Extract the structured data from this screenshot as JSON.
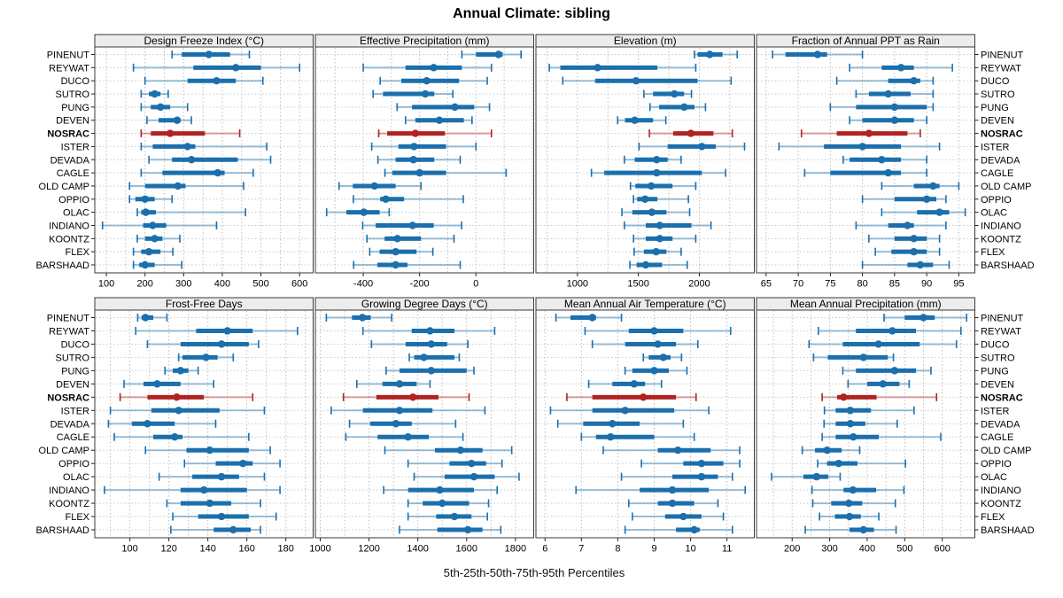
{
  "title": "Annual Climate: sibling",
  "caption": "5th-25th-50th-75th-95th Percentiles",
  "sites": [
    "PINENUT",
    "REYWAT",
    "DUCO",
    "SUTRO",
    "PUNG",
    "DEVEN",
    "NOSRAC",
    "ISTER",
    "DEVADA",
    "CAGLE",
    "OLD CAMP",
    "OPPIO",
    "OLAC",
    "INDIANO",
    "KOONTZ",
    "FLEX",
    "BARSHAAD"
  ],
  "highlight_site": "NOSRAC",
  "colors": {
    "series_blue": "#1b6fad",
    "highlight_red": "#b22222",
    "strip_bg": "#ececec",
    "panel_border": "#3a3a3a",
    "grid": "#bdbdbd",
    "row_line": "#c9c9c9",
    "text": "#000000"
  },
  "chart_data": {
    "type": "scatter",
    "subtype": "trellis percentile dot plot (whisker p5-p95, bar p25-p75, dot p50)",
    "layout": {
      "rows": 2,
      "cols": 4,
      "grid": "dotted",
      "legend": "none"
    },
    "percentile_order": [
      "p5",
      "p25",
      "p50",
      "p75",
      "p95"
    ],
    "panels": [
      {
        "label": "Design Freeze Index (°C)",
        "row": 0,
        "col": 0,
        "xlim": [
          70,
          635
        ],
        "ticks": [
          100,
          200,
          300,
          400,
          500,
          600
        ],
        "grid_step": 50,
        "values": [
          [
            270,
            295,
            365,
            420,
            470
          ],
          [
            170,
            325,
            435,
            500,
            600
          ],
          [
            200,
            310,
            385,
            435,
            505
          ],
          [
            190,
            210,
            225,
            240,
            260
          ],
          [
            190,
            215,
            240,
            265,
            310
          ],
          [
            205,
            235,
            283,
            292,
            320
          ],
          [
            190,
            215,
            265,
            355,
            445
          ],
          [
            190,
            220,
            310,
            330,
            515
          ],
          [
            210,
            270,
            320,
            440,
            525
          ],
          [
            190,
            245,
            388,
            406,
            480
          ],
          [
            160,
            200,
            285,
            305,
            455
          ],
          [
            160,
            175,
            200,
            225,
            270
          ],
          [
            180,
            190,
            202,
            228,
            460
          ],
          [
            90,
            195,
            220,
            255,
            385
          ],
          [
            180,
            200,
            225,
            245,
            290
          ],
          [
            170,
            190,
            210,
            240,
            272
          ],
          [
            170,
            185,
            200,
            225,
            295
          ]
        ]
      },
      {
        "label": "Effective Precipitation (mm)",
        "row": 0,
        "col": 1,
        "xlim": [
          -570,
          205
        ],
        "ticks": [
          -400,
          -200,
          0
        ],
        "grid_step": 100,
        "values": [
          [
            -50,
            0,
            80,
            95,
            160
          ],
          [
            -400,
            -250,
            -150,
            -50,
            55
          ],
          [
            -340,
            -265,
            -175,
            -60,
            40
          ],
          [
            -365,
            -330,
            -180,
            -148,
            -82
          ],
          [
            -280,
            -227,
            -75,
            -6,
            48
          ],
          [
            -250,
            -215,
            -130,
            -43,
            -14
          ],
          [
            -345,
            -315,
            -215,
            -110,
            55
          ],
          [
            -370,
            -275,
            -220,
            -106,
            0
          ],
          [
            -348,
            -285,
            -222,
            -148,
            -56
          ],
          [
            -323,
            -297,
            -200,
            -106,
            107
          ],
          [
            -486,
            -437,
            -360,
            -285,
            -195
          ],
          [
            -435,
            -340,
            -320,
            -255,
            -45
          ],
          [
            -530,
            -460,
            -398,
            -342,
            -308
          ],
          [
            -402,
            -356,
            -225,
            -150,
            -51
          ],
          [
            -387,
            -324,
            -279,
            -195,
            -78
          ],
          [
            -377,
            -342,
            -285,
            -211,
            -153
          ],
          [
            -434,
            -350,
            -285,
            -243,
            -56
          ]
        ]
      },
      {
        "label": "Elevation (m)",
        "row": 0,
        "col": 2,
        "xlim": [
          660,
          2450
        ],
        "ticks": [
          1000,
          1500,
          2000
        ],
        "grid_step": 250,
        "values": [
          [
            1960,
            1985,
            2085,
            2190,
            2310
          ],
          [
            770,
            860,
            1165,
            1655,
            1970
          ],
          [
            880,
            1145,
            1480,
            1985,
            2260
          ],
          [
            1545,
            1620,
            1795,
            1875,
            1935
          ],
          [
            1595,
            1670,
            1875,
            1960,
            2050
          ],
          [
            1330,
            1390,
            1470,
            1620,
            1725
          ],
          [
            1590,
            1785,
            1930,
            2115,
            2270
          ],
          [
            1505,
            1740,
            2020,
            2135,
            2370
          ],
          [
            1385,
            1470,
            1650,
            1740,
            1850
          ],
          [
            1115,
            1220,
            1650,
            2020,
            2215
          ],
          [
            1435,
            1475,
            1605,
            1780,
            1970
          ],
          [
            1460,
            1490,
            1555,
            1655,
            1910
          ],
          [
            1365,
            1450,
            1610,
            1730,
            1920
          ],
          [
            1385,
            1560,
            1675,
            1935,
            2095
          ],
          [
            1460,
            1560,
            1675,
            1780,
            1970
          ],
          [
            1465,
            1545,
            1645,
            1730,
            1850
          ],
          [
            1430,
            1485,
            1560,
            1695,
            1900
          ]
        ]
      },
      {
        "label": "Fraction of Annual PPT as Rain",
        "row": 0,
        "col": 3,
        "xlim": [
          63.5,
          97.5
        ],
        "ticks": [
          65,
          70,
          75,
          80,
          85,
          90,
          95
        ],
        "grid_step": 5,
        "values": [
          [
            66,
            68,
            73,
            74.5,
            80
          ],
          [
            78,
            83,
            86,
            88,
            94
          ],
          [
            76,
            84,
            88,
            89,
            91
          ],
          [
            79,
            81,
            84,
            87.5,
            91
          ],
          [
            75,
            79,
            85,
            90,
            91
          ],
          [
            78,
            80,
            85,
            88,
            90
          ],
          [
            70.5,
            76,
            81,
            87,
            89
          ],
          [
            67,
            74,
            80,
            86,
            92
          ],
          [
            77,
            78,
            83,
            86,
            90
          ],
          [
            71,
            75,
            84,
            86,
            90
          ],
          [
            83,
            88,
            91,
            92,
            95
          ],
          [
            80,
            85,
            90,
            91.5,
            93
          ],
          [
            83,
            88.5,
            92,
            93.5,
            96
          ],
          [
            79,
            84,
            87,
            88,
            93
          ],
          [
            81,
            85,
            88,
            90,
            92
          ],
          [
            82,
            84.5,
            88,
            90,
            92
          ],
          [
            80,
            87,
            89,
            91,
            93.5
          ]
        ]
      },
      {
        "label": "Frost-Free Days",
        "row": 1,
        "col": 0,
        "xlim": [
          82,
          194
        ],
        "ticks": [
          100,
          120,
          140,
          160,
          180
        ],
        "grid_step": 10,
        "values": [
          [
            104,
            106,
            108,
            112,
            119
          ],
          [
            103,
            134,
            150,
            163,
            186
          ],
          [
            109,
            126,
            147,
            161,
            166
          ],
          [
            125,
            127,
            139,
            145,
            153
          ],
          [
            118,
            122,
            126,
            130,
            135
          ],
          [
            97,
            107,
            114,
            126,
            143
          ],
          [
            95,
            109,
            124,
            138,
            163
          ],
          [
            90,
            111,
            125,
            146,
            169
          ],
          [
            89,
            101,
            109,
            123,
            144
          ],
          [
            92,
            112,
            123,
            127,
            161
          ],
          [
            108,
            129,
            141,
            161,
            172
          ],
          [
            128,
            144,
            158,
            163,
            177
          ],
          [
            115,
            132,
            147,
            156,
            169
          ],
          [
            87,
            126,
            138,
            160,
            177
          ],
          [
            119,
            126,
            141,
            152,
            167
          ],
          [
            122,
            135,
            147,
            161,
            175
          ],
          [
            121,
            143,
            153,
            162,
            167
          ]
        ]
      },
      {
        "label": "Growing Degree Days (°C)",
        "row": 1,
        "col": 1,
        "xlim": [
          980,
          1875
        ],
        "ticks": [
          1000,
          1200,
          1400,
          1600,
          1800
        ],
        "grid_step": 100,
        "values": [
          [
            1025,
            1130,
            1173,
            1207,
            1293
          ],
          [
            1175,
            1375,
            1450,
            1550,
            1715
          ],
          [
            1210,
            1350,
            1455,
            1520,
            1605
          ],
          [
            1365,
            1385,
            1425,
            1550,
            1570
          ],
          [
            1270,
            1325,
            1455,
            1600,
            1630
          ],
          [
            1150,
            1255,
            1325,
            1395,
            1450
          ],
          [
            1095,
            1230,
            1380,
            1485,
            1610
          ],
          [
            1045,
            1175,
            1325,
            1460,
            1675
          ],
          [
            1120,
            1205,
            1310,
            1375,
            1555
          ],
          [
            1105,
            1235,
            1360,
            1445,
            1585
          ],
          [
            1265,
            1470,
            1575,
            1665,
            1785
          ],
          [
            1360,
            1530,
            1620,
            1680,
            1745
          ],
          [
            1385,
            1510,
            1630,
            1715,
            1815
          ],
          [
            1260,
            1360,
            1490,
            1630,
            1725
          ],
          [
            1360,
            1420,
            1500,
            1610,
            1690
          ],
          [
            1360,
            1475,
            1550,
            1620,
            1685
          ],
          [
            1325,
            1480,
            1605,
            1665,
            1740
          ]
        ]
      },
      {
        "label": "Mean Annual Air Temperature (°C)",
        "row": 1,
        "col": 2,
        "xlim": [
          5.75,
          11.75
        ],
        "ticks": [
          6,
          7,
          8,
          9,
          10,
          11
        ],
        "grid_step": 1,
        "values": [
          [
            6.3,
            6.7,
            7.3,
            7.4,
            8.1
          ],
          [
            7.1,
            8.3,
            9.0,
            9.8,
            11.1
          ],
          [
            7.3,
            8.2,
            9.1,
            9.6,
            10.2
          ],
          [
            8.7,
            8.85,
            9.25,
            9.45,
            9.75
          ],
          [
            8.2,
            8.4,
            9.0,
            9.4,
            9.9
          ],
          [
            7.2,
            7.85,
            8.45,
            8.75,
            9.2
          ],
          [
            6.6,
            7.3,
            8.7,
            9.6,
            10.15
          ],
          [
            6.15,
            7.3,
            8.2,
            9.55,
            10.5
          ],
          [
            6.35,
            7.05,
            7.85,
            8.6,
            9.8
          ],
          [
            7.0,
            7.4,
            7.8,
            9.0,
            10.1
          ],
          [
            7.6,
            9.1,
            9.65,
            10.55,
            11.35
          ],
          [
            8.65,
            9.8,
            10.3,
            10.9,
            11.35
          ],
          [
            8.1,
            9.5,
            10.3,
            10.75,
            11.15
          ],
          [
            6.85,
            8.6,
            9.5,
            10.5,
            11.5
          ],
          [
            8.3,
            9.1,
            9.5,
            10.1,
            10.75
          ],
          [
            8.4,
            9.3,
            9.8,
            10.3,
            10.9
          ],
          [
            8.2,
            9.6,
            10.1,
            10.25,
            11.15
          ]
        ]
      },
      {
        "label": "Mean Annual Precipitation (mm)",
        "row": 1,
        "col": 3,
        "xlim": [
          105,
          687
        ],
        "ticks": [
          200,
          300,
          400,
          500,
          600
        ],
        "grid_step": 50,
        "values": [
          [
            445,
            500,
            550,
            580,
            665
          ],
          [
            270,
            370,
            467,
            530,
            650
          ],
          [
            245,
            335,
            430,
            540,
            638
          ],
          [
            257,
            295,
            390,
            455,
            470
          ],
          [
            335,
            370,
            473,
            530,
            570
          ],
          [
            349,
            400,
            442,
            486,
            512
          ],
          [
            280,
            320,
            337,
            425,
            585
          ],
          [
            286,
            316,
            355,
            410,
            525
          ],
          [
            285,
            316,
            355,
            395,
            480
          ],
          [
            280,
            316,
            363,
            431,
            596
          ],
          [
            227,
            261,
            293,
            332,
            380
          ],
          [
            268,
            293,
            324,
            374,
            502
          ],
          [
            145,
            230,
            265,
            296,
            328
          ],
          [
            253,
            337,
            362,
            424,
            498
          ],
          [
            255,
            304,
            351,
            387,
            475
          ],
          [
            273,
            314,
            353,
            383,
            431
          ],
          [
            235,
            353,
            390,
            418,
            477
          ]
        ]
      }
    ]
  }
}
